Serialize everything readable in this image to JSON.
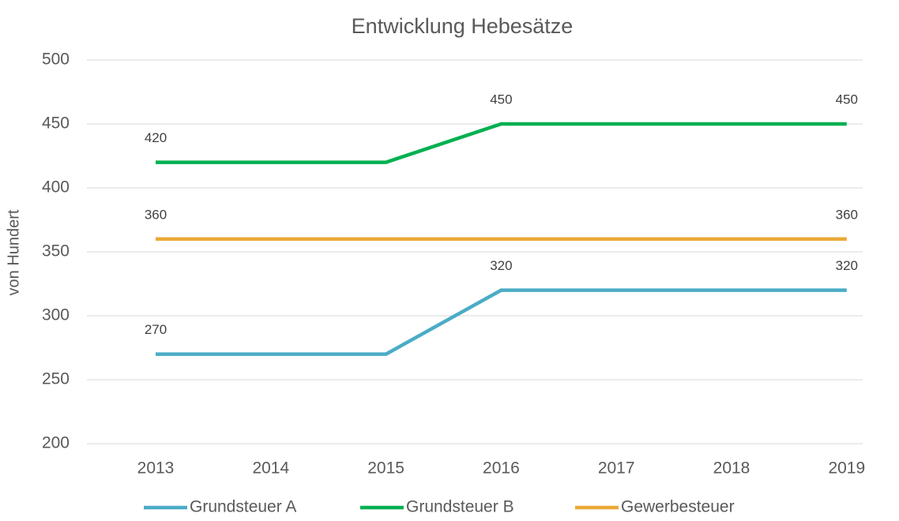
{
  "chart_data": {
    "type": "line",
    "title": "Entwicklung Hebesätze",
    "y_label": "von Hundert",
    "categories": [
      "2013",
      "2014",
      "2015",
      "2016",
      "2017",
      "2018",
      "2019"
    ],
    "series": [
      {
        "name": "Grundsteuer A",
        "color": "#4bacc6",
        "values": [
          270,
          270,
          270,
          320,
          320,
          320,
          320
        ],
        "value_labels": [
          "270",
          null,
          null,
          "320",
          null,
          null,
          "320"
        ]
      },
      {
        "name": "Grundsteuer B",
        "color": "#00b050",
        "values": [
          420,
          420,
          420,
          450,
          450,
          450,
          450
        ],
        "value_labels": [
          "420",
          null,
          null,
          "450",
          null,
          null,
          "450"
        ]
      },
      {
        "name": "Gewerbesteuer",
        "color": "#eaa937",
        "values": [
          360,
          360,
          360,
          360,
          360,
          360,
          360
        ],
        "value_labels": [
          "360",
          null,
          null,
          null,
          null,
          null,
          "360"
        ]
      }
    ],
    "ylim": [
      200,
      500
    ],
    "yticks": [
      200,
      250,
      300,
      350,
      400,
      450,
      500
    ],
    "grid": true,
    "legend": "bottom"
  }
}
